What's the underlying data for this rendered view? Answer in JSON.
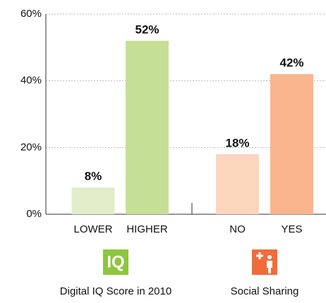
{
  "chart_data": {
    "type": "bar",
    "categories": [
      "LOWER",
      "HIGHER",
      "NO",
      "YES"
    ],
    "values": [
      8,
      52,
      18,
      42
    ],
    "value_labels": [
      "8%",
      "52%",
      "18%",
      "42%"
    ],
    "colors": [
      "#e2edc9",
      "#c6df96",
      "#fcd5bd",
      "#f9b58d"
    ],
    "ylim": [
      0,
      60
    ],
    "yticks": [
      {
        "value": 0,
        "label": "0%"
      },
      {
        "value": 20,
        "label": "20%"
      },
      {
        "value": 40,
        "label": "40%"
      },
      {
        "value": 60,
        "label": "60%"
      }
    ],
    "grid": true,
    "groups": [
      {
        "name": "Digital IQ Score in 2010",
        "icon": "IQ",
        "color": "#8dc63f"
      },
      {
        "name": "Social Sharing",
        "color": "#f26b3a"
      }
    ]
  }
}
